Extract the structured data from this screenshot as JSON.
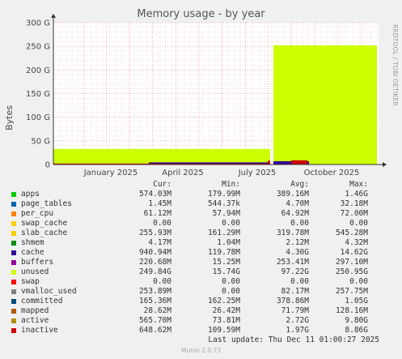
{
  "chart_data": {
    "type": "area",
    "title": "Memory usage - by year",
    "ylabel": "Bytes",
    "xlabel": "",
    "ylim": [
      0,
      300
    ],
    "y_unit": "G",
    "y_ticks": [
      "0",
      "50 G",
      "100 G",
      "150 G",
      "200 G",
      "250 G",
      "300 G"
    ],
    "x_ticks": [
      "January 2025",
      "April 2025",
      "July 2025",
      "October 2025"
    ],
    "grid": true,
    "legend_placement": "bottom",
    "gap_after": "July 2025",
    "series": [
      {
        "name": "unused",
        "color": "#ccff00",
        "before_gap": 33,
        "after_gap": 252
      },
      {
        "name": "cache",
        "color": "#330099",
        "before_gap": 4.5,
        "after_gap": 7
      },
      {
        "name": "inactive",
        "color": "#cc0000",
        "before_gap": 2,
        "after_gap": 9
      },
      {
        "name": "apps",
        "color": "#00cc00",
        "before_gap": 0.4,
        "after_gap": 0.6
      }
    ]
  },
  "side_label": "RRDTOOL / TOBI OETIKER",
  "legend": {
    "headers": {
      "cur": "Cur:",
      "min": "Min:",
      "avg": "Avg:",
      "max": "Max:"
    },
    "rows": [
      {
        "name": "apps",
        "color": "#00cc00",
        "cur": "574.03M",
        "min": "179.99M",
        "avg": "389.16M",
        "max": "1.46G"
      },
      {
        "name": "page_tables",
        "color": "#0066b3",
        "cur": "1.45M",
        "min": "544.37k",
        "avg": "4.70M",
        "max": "32.18M"
      },
      {
        "name": "per_cpu",
        "color": "#ff8000",
        "cur": "61.12M",
        "min": "57.94M",
        "avg": "64.92M",
        "max": "72.00M"
      },
      {
        "name": "swap_cache",
        "color": "#ffcc00",
        "cur": "0.00",
        "min": "0.00",
        "avg": "0.00",
        "max": "0.00"
      },
      {
        "name": "slab_cache",
        "color": "#ffcc00",
        "cur": "255.93M",
        "min": "161.29M",
        "avg": "319.78M",
        "max": "545.28M"
      },
      {
        "name": "shmem",
        "color": "#008f00",
        "cur": "4.17M",
        "min": "1.04M",
        "avg": "2.12M",
        "max": "4.32M"
      },
      {
        "name": "cache",
        "color": "#330099",
        "cur": "940.94M",
        "min": "119.78M",
        "avg": "4.30G",
        "max": "14.62G"
      },
      {
        "name": "buffers",
        "color": "#990099",
        "cur": "220.68M",
        "min": "15.25M",
        "avg": "253.41M",
        "max": "297.10M"
      },
      {
        "name": "unused",
        "color": "#ccff00",
        "cur": "249.84G",
        "min": "15.74G",
        "avg": "97.22G",
        "max": "250.95G"
      },
      {
        "name": "swap",
        "color": "#ff0000",
        "cur": "0.00",
        "min": "0.00",
        "avg": "0.00",
        "max": "0.00"
      },
      {
        "name": "vmalloc_used",
        "color": "#808080",
        "cur": "253.89M",
        "min": "0.00",
        "avg": "82.17M",
        "max": "257.75M"
      },
      {
        "name": "committed",
        "color": "#004d80",
        "cur": "165.36M",
        "min": "162.25M",
        "avg": "378.86M",
        "max": "1.05G"
      },
      {
        "name": "mapped",
        "color": "#b35a00",
        "cur": "28.62M",
        "min": "26.42M",
        "avg": "71.79M",
        "max": "128.16M"
      },
      {
        "name": "active",
        "color": "#b38f00",
        "cur": "565.70M",
        "min": "73.81M",
        "avg": "2.72G",
        "max": "9.80G"
      },
      {
        "name": "inactive",
        "color": "#cc0000",
        "cur": "648.62M",
        "min": "109.59M",
        "avg": "1.97G",
        "max": "8.86G"
      }
    ]
  },
  "last_update": "Last update: Thu Dec 11 01:00:27 2025",
  "footer": "Munin 2.0.73"
}
